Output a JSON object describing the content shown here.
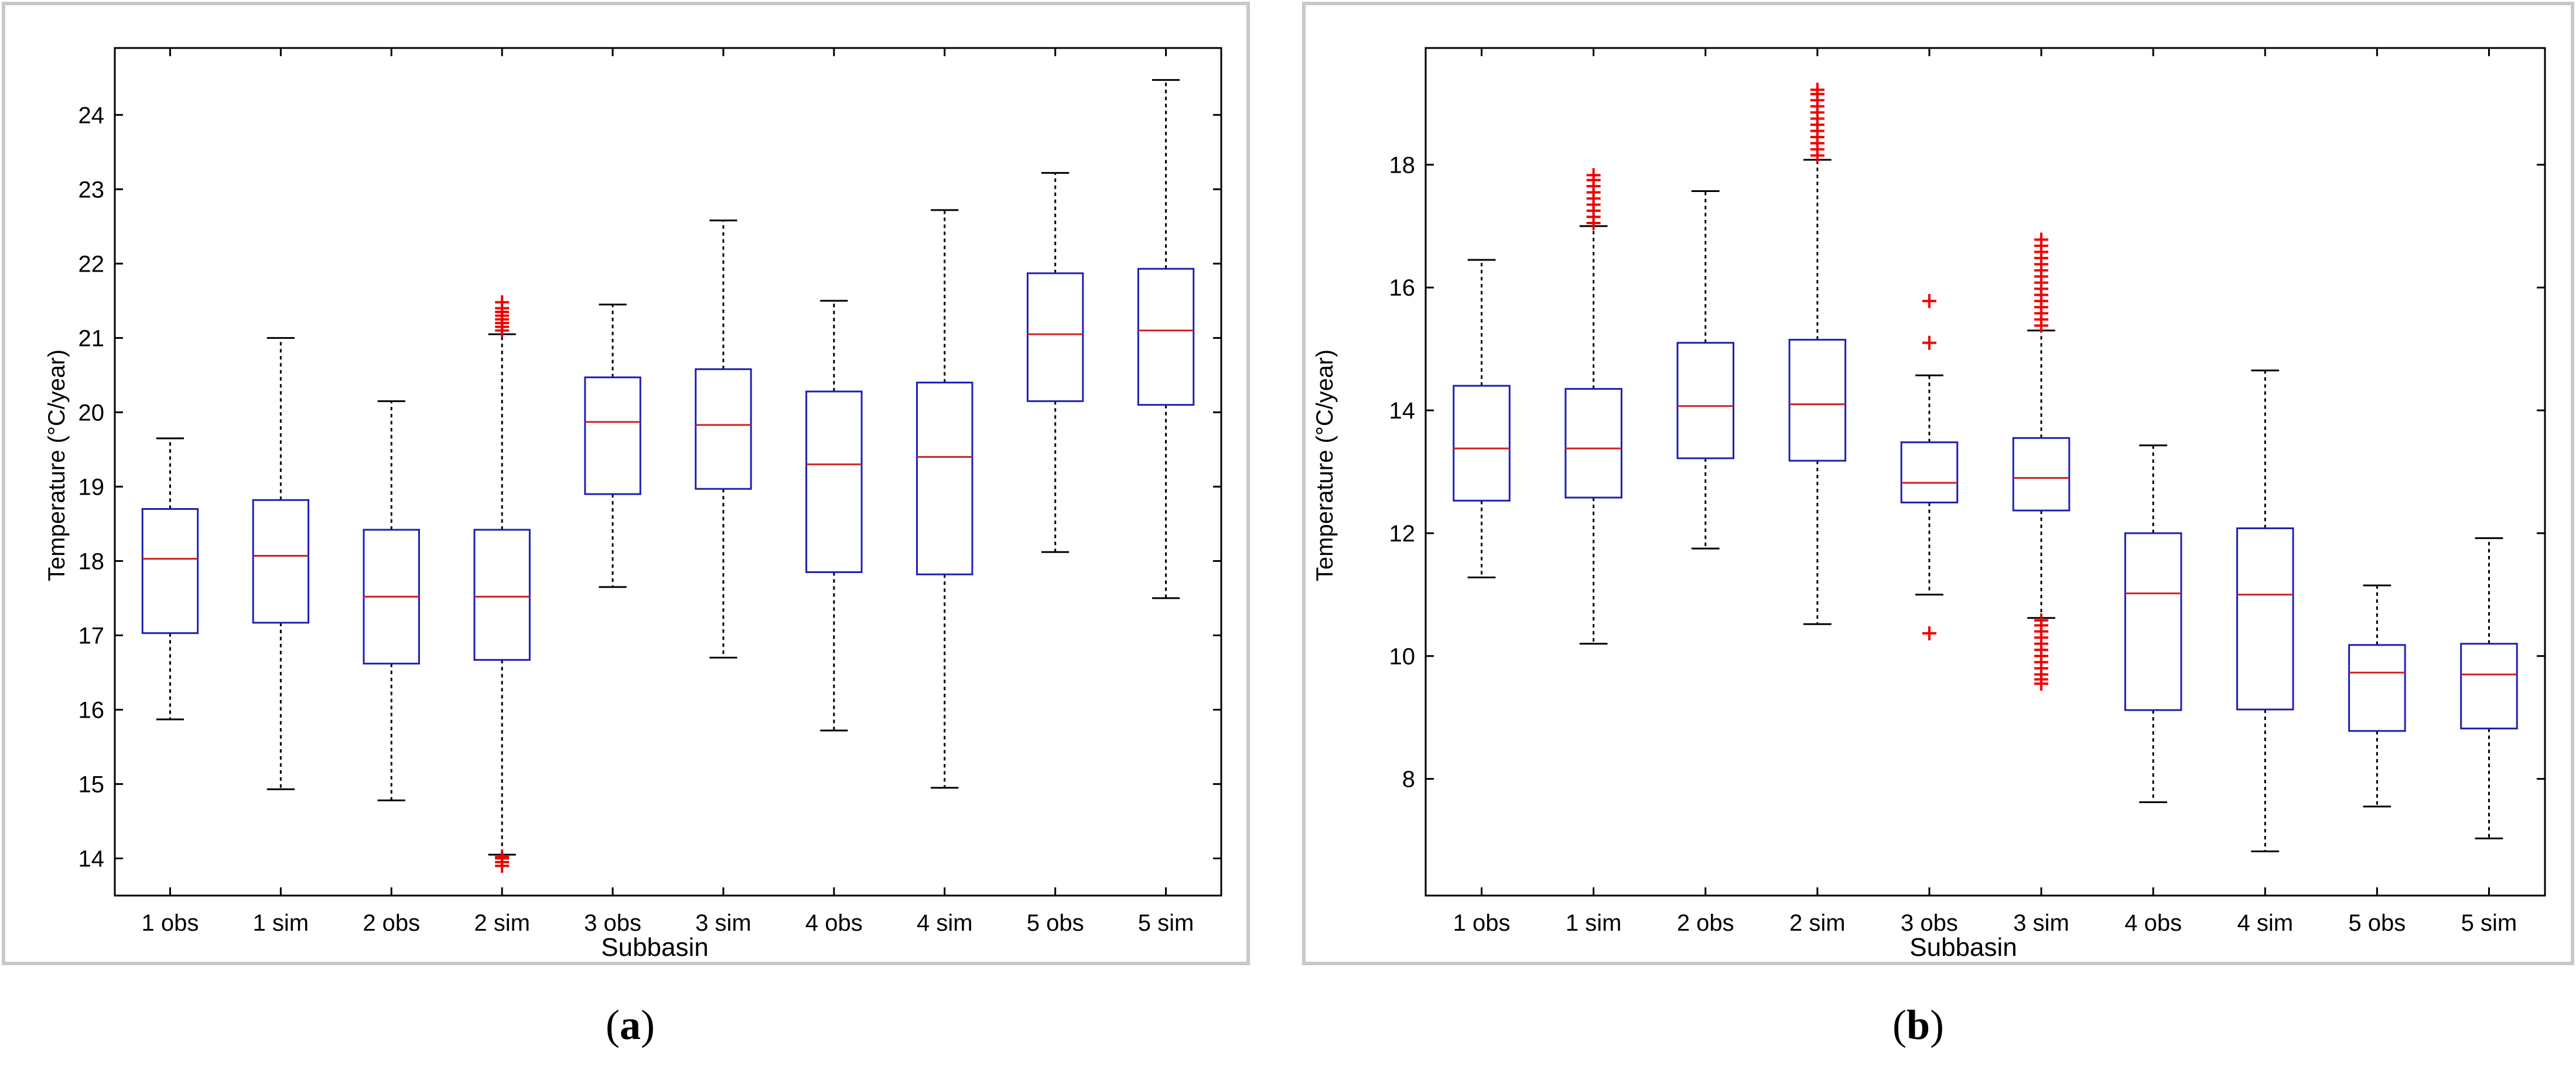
{
  "figure": {
    "caption_a": {
      "open": "(",
      "letter": "a",
      "close": ")"
    },
    "caption_b": {
      "open": "(",
      "letter": "b",
      "close": ")"
    }
  },
  "colors": {
    "box": "#1f1fb4",
    "median": "#cc2222",
    "whisker": "#000000",
    "outlier": "#ee0000",
    "panel_border": "#c8c8c8"
  },
  "chart_data": [
    {
      "id": "a",
      "type": "boxplot",
      "xlabel": "Subbasin",
      "ylabel": "Temperature (°C/year)",
      "ylim": [
        13.5,
        24.9
      ],
      "yticks": [
        14,
        15,
        16,
        17,
        18,
        19,
        20,
        21,
        22,
        23,
        24
      ],
      "categories": [
        "1 obs",
        "1 sim",
        "2 obs",
        "2 sim",
        "3 obs",
        "3 sim",
        "4 obs",
        "4 sim",
        "5 obs",
        "5 sim"
      ],
      "boxes": [
        {
          "min": 15.87,
          "q1": 17.03,
          "median": 18.03,
          "q3": 18.7,
          "max": 19.65,
          "outliers": []
        },
        {
          "min": 14.93,
          "q1": 17.17,
          "median": 18.07,
          "q3": 18.82,
          "max": 21.0,
          "outliers": []
        },
        {
          "min": 14.78,
          "q1": 16.62,
          "median": 17.52,
          "q3": 18.42,
          "max": 20.15,
          "outliers": []
        },
        {
          "min": 14.05,
          "q1": 16.67,
          "median": 17.52,
          "q3": 18.42,
          "max": 21.05,
          "outliers": [
            13.9,
            13.95,
            14.0,
            14.02,
            21.1,
            21.15,
            21.2,
            21.25,
            21.3,
            21.35,
            21.4,
            21.48
          ]
        },
        {
          "min": 17.65,
          "q1": 18.9,
          "median": 19.87,
          "q3": 20.47,
          "max": 21.45,
          "outliers": []
        },
        {
          "min": 16.7,
          "q1": 18.97,
          "median": 19.83,
          "q3": 20.58,
          "max": 22.58,
          "outliers": []
        },
        {
          "min": 15.72,
          "q1": 17.85,
          "median": 19.3,
          "q3": 20.28,
          "max": 21.5,
          "outliers": []
        },
        {
          "min": 14.95,
          "q1": 17.82,
          "median": 19.4,
          "q3": 20.4,
          "max": 22.72,
          "outliers": []
        },
        {
          "min": 18.12,
          "q1": 20.15,
          "median": 21.05,
          "q3": 21.87,
          "max": 23.22,
          "outliers": []
        },
        {
          "min": 17.5,
          "q1": 20.1,
          "median": 21.1,
          "q3": 21.93,
          "max": 24.47,
          "outliers": []
        }
      ]
    },
    {
      "id": "b",
      "type": "boxplot",
      "xlabel": "Subbasin",
      "ylabel": "Temperature (°C/year)",
      "ylim": [
        6.1,
        19.9
      ],
      "yticks": [
        8,
        10,
        12,
        14,
        16,
        18
      ],
      "categories": [
        "1 obs",
        "1 sim",
        "2 obs",
        "2 sim",
        "3 obs",
        "3 sim",
        "4 obs",
        "4 sim",
        "5 obs",
        "5 sim"
      ],
      "boxes": [
        {
          "min": 11.28,
          "q1": 12.53,
          "median": 13.38,
          "q3": 14.4,
          "max": 16.45,
          "outliers": []
        },
        {
          "min": 10.2,
          "q1": 12.58,
          "median": 13.38,
          "q3": 14.35,
          "max": 17.0,
          "outliers": [
            17.05,
            17.15,
            17.25,
            17.35,
            17.45,
            17.55,
            17.65,
            17.75,
            17.83
          ]
        },
        {
          "min": 11.75,
          "q1": 13.22,
          "median": 14.07,
          "q3": 15.1,
          "max": 17.57,
          "outliers": []
        },
        {
          "min": 10.52,
          "q1": 13.18,
          "median": 14.1,
          "q3": 15.15,
          "max": 18.08,
          "outliers": [
            18.15,
            18.25,
            18.35,
            18.45,
            18.55,
            18.65,
            18.75,
            18.85,
            18.95,
            19.05,
            19.15,
            19.22
          ]
        },
        {
          "min": 11.0,
          "q1": 12.5,
          "median": 12.82,
          "q3": 13.48,
          "max": 14.57,
          "outliers": [
            10.37,
            15.1,
            15.78
          ]
        },
        {
          "min": 10.62,
          "q1": 12.37,
          "median": 12.9,
          "q3": 13.55,
          "max": 15.3,
          "outliers": [
            9.55,
            9.62,
            9.7,
            9.8,
            9.9,
            10.0,
            10.1,
            10.2,
            10.3,
            10.4,
            10.5,
            10.58,
            15.38,
            15.48,
            15.58,
            15.68,
            15.78,
            15.88,
            15.98,
            16.08,
            16.18,
            16.28,
            16.38,
            16.48,
            16.58,
            16.68,
            16.78
          ]
        },
        {
          "min": 7.62,
          "q1": 9.12,
          "median": 11.02,
          "q3": 12.0,
          "max": 13.43,
          "outliers": []
        },
        {
          "min": 6.82,
          "q1": 9.13,
          "median": 11.0,
          "q3": 12.08,
          "max": 14.65,
          "outliers": []
        },
        {
          "min": 7.55,
          "q1": 8.78,
          "median": 9.73,
          "q3": 10.18,
          "max": 11.15,
          "outliers": []
        },
        {
          "min": 7.03,
          "q1": 8.82,
          "median": 9.7,
          "q3": 10.2,
          "max": 11.92,
          "outliers": []
        }
      ]
    }
  ]
}
